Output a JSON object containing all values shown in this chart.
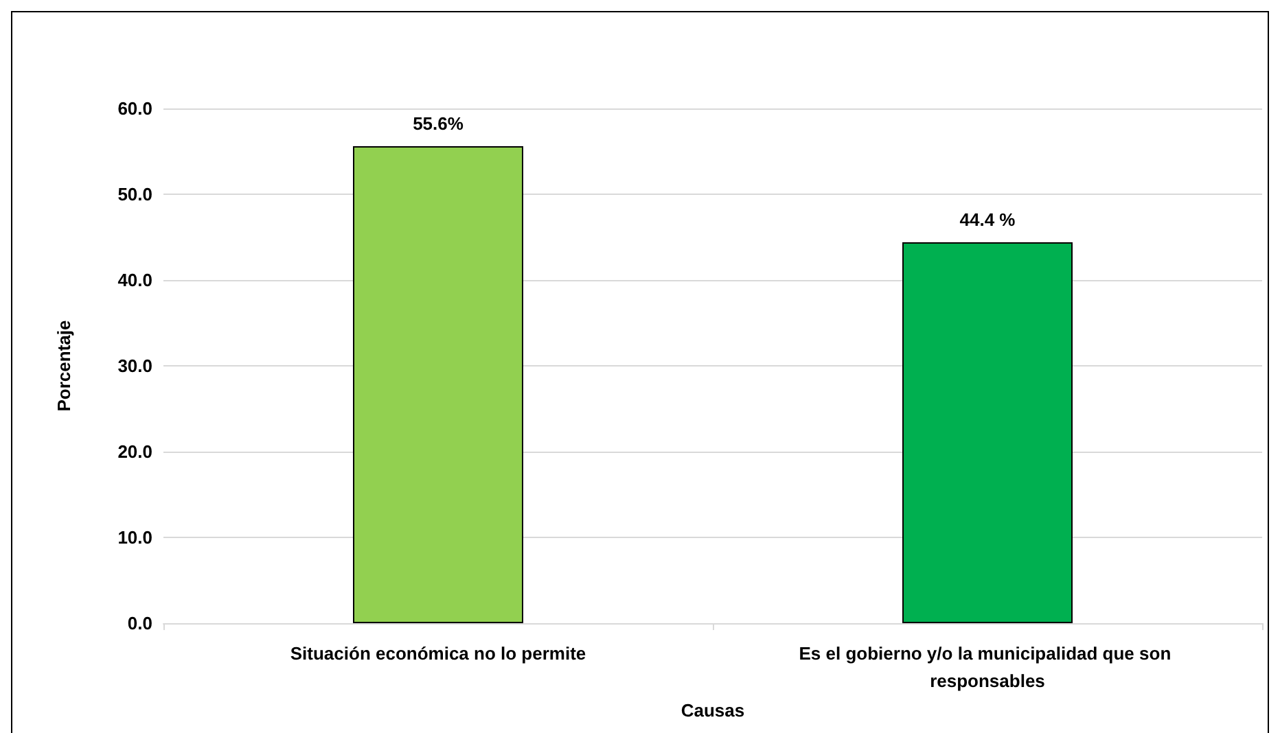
{
  "chart_data": {
    "type": "bar",
    "xlabel": "Causas",
    "ylabel": "Porcentaje",
    "categories": [
      "Situación económica no lo permite",
      "Es el gobierno y/o la municipalidad que son responsables"
    ],
    "values": [
      55.6,
      44.4
    ],
    "colors": [
      "#92d050",
      "#00b050"
    ],
    "value_labels": [
      "55.6%",
      "44.4 %"
    ],
    "ylim": [
      0,
      60
    ],
    "yticks": [
      {
        "value": 0,
        "label": "0.0"
      },
      {
        "value": 10,
        "label": "10.0"
      },
      {
        "value": 20,
        "label": "20.0"
      },
      {
        "value": 30,
        "label": "30.0"
      },
      {
        "value": 40,
        "label": "40.0"
      },
      {
        "value": 50,
        "label": "50.0"
      },
      {
        "value": 60,
        "label": "60.0"
      }
    ],
    "grid": "y"
  }
}
